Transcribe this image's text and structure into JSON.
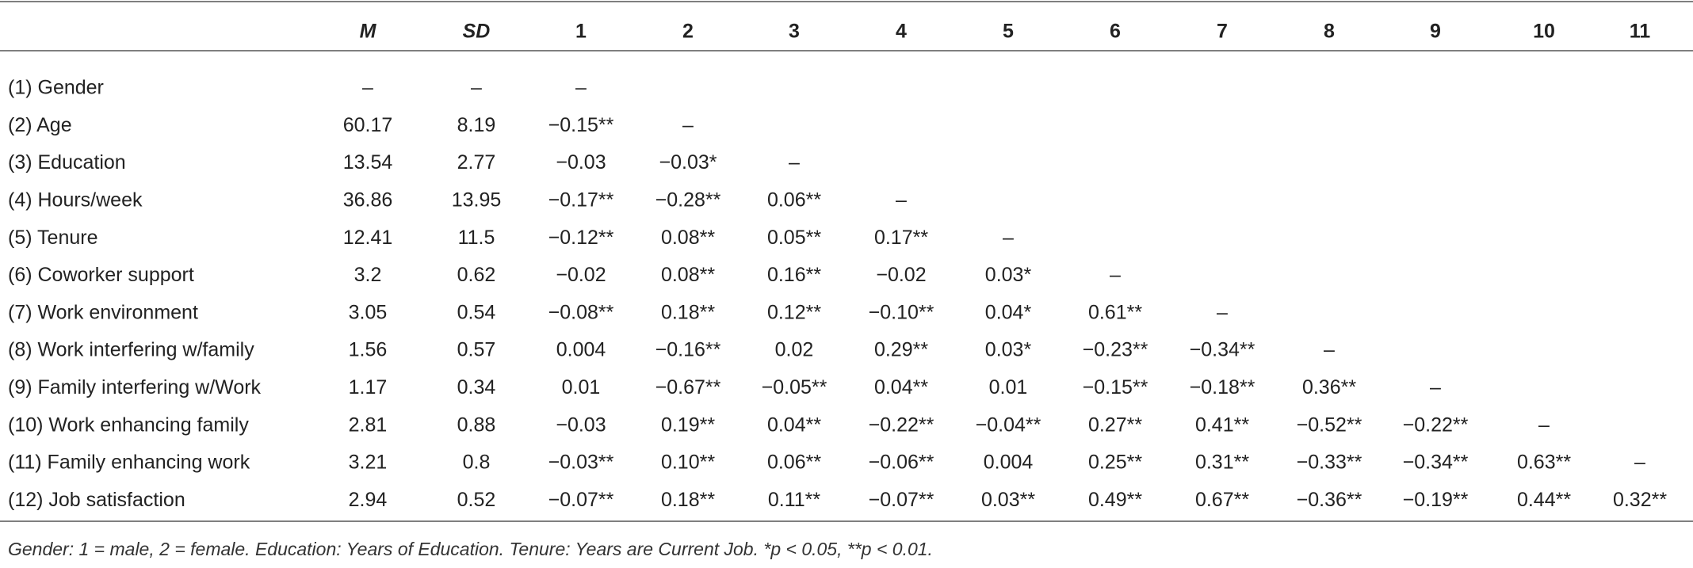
{
  "table": {
    "header": [
      "M",
      "SD",
      "1",
      "2",
      "3",
      "4",
      "5",
      "6",
      "7",
      "8",
      "9",
      "10",
      "11"
    ],
    "rows": [
      [
        "(1) Gender",
        "–",
        "–",
        "–"
      ],
      [
        "(2) Age",
        "60.17",
        "8.19",
        "−0.15**",
        "–"
      ],
      [
        "(3) Education",
        "13.54",
        "2.77",
        "−0.03",
        "−0.03*",
        "–"
      ],
      [
        "(4) Hours/week",
        "36.86",
        "13.95",
        "−0.17**",
        "−0.28**",
        "0.06**",
        "–"
      ],
      [
        "(5) Tenure",
        "12.41",
        "11.5",
        "−0.12**",
        "0.08**",
        "0.05**",
        "0.17**",
        "–"
      ],
      [
        "(6) Coworker support",
        "3.2",
        "0.62",
        "−0.02",
        "0.08**",
        "0.16**",
        "−0.02",
        "0.03*",
        "–"
      ],
      [
        "(7) Work environment",
        "3.05",
        "0.54",
        "−0.08**",
        "0.18**",
        "0.12**",
        "−0.10**",
        "0.04*",
        "0.61**",
        "–"
      ],
      [
        "(8) Work interfering w/family",
        "1.56",
        "0.57",
        "0.004",
        "−0.16**",
        "0.02",
        "0.29**",
        "0.03*",
        "−0.23**",
        "−0.34**",
        "–"
      ],
      [
        "(9) Family interfering w/Work",
        "1.17",
        "0.34",
        "0.01",
        "−0.67**",
        "−0.05**",
        "0.04**",
        "0.01",
        "−0.15**",
        "−0.18**",
        "0.36**",
        "–"
      ],
      [
        "(10) Work enhancing family",
        "2.81",
        "0.88",
        "−0.03",
        "0.19**",
        "0.04**",
        "−0.22**",
        "−0.04**",
        "0.27**",
        "0.41**",
        "−0.52**",
        "−0.22**",
        "–"
      ],
      [
        "(11) Family enhancing work",
        "3.21",
        "0.8",
        "−0.03**",
        "0.10**",
        "0.06**",
        "−0.06**",
        "0.004",
        "0.25**",
        "0.31**",
        "−0.33**",
        "−0.34**",
        "0.63**",
        "–"
      ],
      [
        "(12) Job satisfaction",
        "2.94",
        "0.52",
        "−0.07**",
        "0.18**",
        "0.11**",
        "−0.07**",
        "0.03**",
        "0.49**",
        "0.67**",
        "−0.36**",
        "−0.19**",
        "0.44**",
        "0.32**"
      ]
    ],
    "footnote": "Gender: 1 = male, 2 = female. Education: Years of Education. Tenure: Years are Current Job. *p < 0.05, **p < 0.01."
  }
}
